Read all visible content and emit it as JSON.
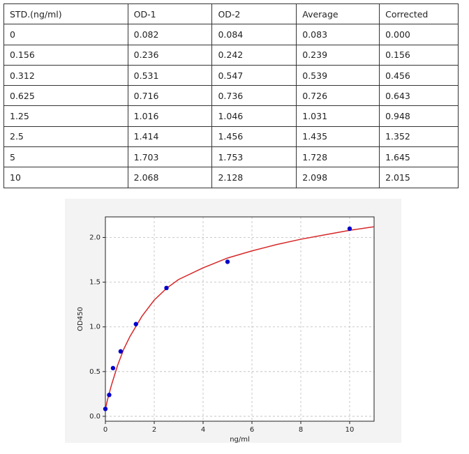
{
  "table": {
    "header": [
      "STD.(ng/ml)",
      "OD-1",
      "OD-2",
      "Average",
      "Corrected"
    ],
    "rows": [
      [
        "0",
        "0.082",
        "0.084",
        "0.083",
        "0.000"
      ],
      [
        "0.156",
        "0.236",
        "0.242",
        "0.239",
        "0.156"
      ],
      [
        "0.312",
        "0.531",
        "0.547",
        "0.539",
        "0.456"
      ],
      [
        "0.625",
        "0.716",
        "0.736",
        "0.726",
        "0.643"
      ],
      [
        "1.25",
        "1.016",
        "1.046",
        "1.031",
        "0.948"
      ],
      [
        "2.5",
        "1.414",
        "1.456",
        "1.435",
        "1.352"
      ],
      [
        "5",
        "1.703",
        "1.753",
        "1.728",
        "1.645"
      ],
      [
        "10",
        "2.068",
        "2.128",
        "2.098",
        "2.015"
      ]
    ]
  },
  "chart_data": {
    "type": "scatter",
    "xlabel": "ng/ml",
    "ylabel": "OD450",
    "x": [
      0,
      0.156,
      0.312,
      0.625,
      1.25,
      2.5,
      5,
      10
    ],
    "values": [
      0.083,
      0.239,
      0.539,
      0.726,
      1.031,
      1.435,
      1.728,
      2.098
    ],
    "color": "#0000cc",
    "fit": {
      "color": "#d62728",
      "x": [
        0,
        0.1,
        0.25,
        0.5,
        0.75,
        1,
        1.5,
        2,
        2.5,
        3,
        4,
        5,
        6,
        7,
        8,
        9,
        10,
        11
      ],
      "values": [
        0.08,
        0.2,
        0.35,
        0.57,
        0.75,
        0.89,
        1.12,
        1.3,
        1.43,
        1.53,
        1.66,
        1.77,
        1.85,
        1.92,
        1.98,
        2.03,
        2.08,
        2.12
      ]
    },
    "xlim": [
      0,
      11
    ],
    "ylim": [
      -0.055,
      2.23
    ],
    "xticks": [
      0,
      2,
      4,
      6,
      8,
      10
    ],
    "yticks": [
      {
        "value": 0,
        "label": "0.0"
      },
      0.5,
      {
        "value": 1,
        "label": "1.0"
      },
      1.5,
      {
        "value": 2,
        "label": "2.0"
      }
    ],
    "grid": true
  }
}
